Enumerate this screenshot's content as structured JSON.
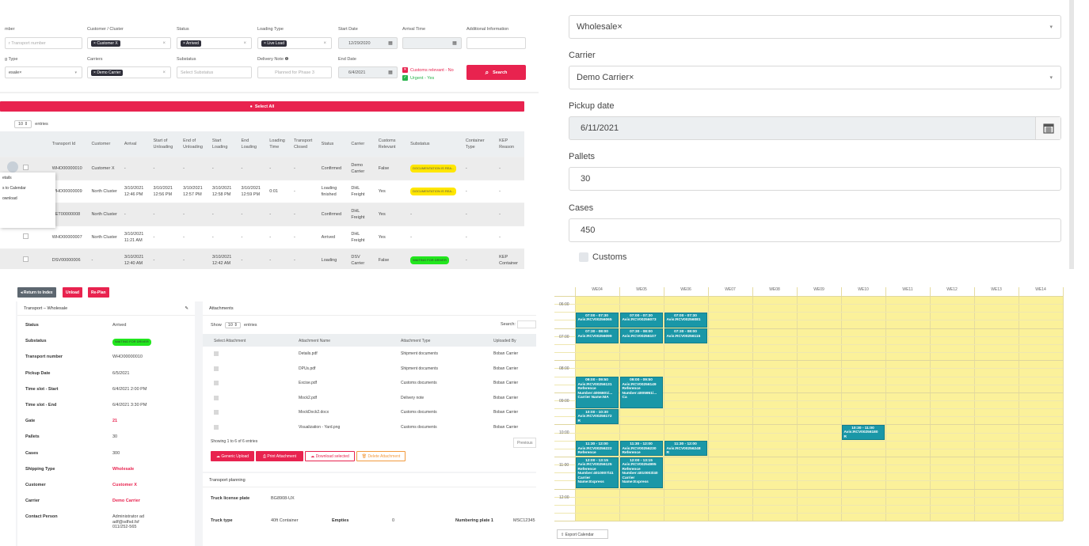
{
  "filters": {
    "row1": [
      {
        "label": "mber",
        "placeholder": "r Transport number"
      },
      {
        "label": "Customer / Cluster",
        "tag": "Customer X"
      },
      {
        "label": "Status",
        "tag": "Arrived"
      },
      {
        "label": "Loading Type",
        "tag": "Live Load"
      },
      {
        "label": "Start Date",
        "value": "12/29/2020"
      },
      {
        "label": "Arrival Time",
        "value": ""
      },
      {
        "label": "Additional Information",
        "value": ""
      }
    ],
    "row2": [
      {
        "label": "g Type",
        "value": "esale×"
      },
      {
        "label": "Carriers",
        "tag": "Demo Carrier"
      },
      {
        "label": "Substatus",
        "placeholder": "Select Substatus"
      },
      {
        "label": "Delivery Note",
        "placeholder": "Planned for Phase 3"
      },
      {
        "label": "End Date",
        "value": "6/4/2021"
      }
    ],
    "customs_relevant": "Customs relevant - No",
    "urgent": "Urgent - Yes",
    "search_label": "Search",
    "clear_symbol": "×",
    "calendar_icon": "calendar-icon",
    "colors": {
      "accent": "#e8234f",
      "tag": "#2f2f3a",
      "green": "#28b34b"
    }
  },
  "select_all_label": "Select All",
  "entries": {
    "count": "10",
    "label": "entries"
  },
  "table": {
    "columns": [
      "Transport Id",
      "Customer",
      "Arrival",
      "Start of Unloading",
      "End of Unloading",
      "Start Loading",
      "End Loading",
      "Loading Time",
      "Transport Closed",
      "Status",
      "Carrier",
      "Customs Relevant",
      "Substatus",
      "Container Type",
      "KEP Reason"
    ],
    "rows": [
      [
        "WHO00000010",
        "Customer X",
        "-",
        "-",
        "-",
        "-",
        "-",
        "-",
        "-",
        "Confirmed",
        "Demo Carrier",
        "False",
        "DOCUMENTATION IS REA...",
        "-",
        "-"
      ],
      [
        "WHO00000009",
        "North Cluster",
        "3/10/2021 12:46 PM",
        "3/10/2021 12:56 PM",
        "3/10/2021 12:57 PM",
        "3/10/2021 12:58 PM",
        "3/10/2021 12:59 PM",
        "0:01",
        "-",
        "Loading finished",
        "DHL Freight",
        "Yes",
        "DOCUMENTATION IS REA...",
        "-",
        "-"
      ],
      [
        "RET00000008",
        "North Cluster",
        "-",
        "-",
        "-",
        "-",
        "-",
        "-",
        "-",
        "Confirmed",
        "DHL Freight",
        "Yes",
        "-",
        "-",
        "-"
      ],
      [
        "WHO00000007",
        "North Cluster",
        "3/10/2021 11:21 AM",
        "-",
        "-",
        "-",
        "-",
        "-",
        "-",
        "Arrived",
        "DHL Freight",
        "Yes",
        "-",
        "-",
        "-"
      ],
      [
        "DSV00000006",
        "-",
        "3/10/2021 12:40 AM",
        "-",
        "-",
        "3/10/2021 12:42 AM",
        "-",
        "-",
        "-",
        "Loading",
        "DSV Carrier",
        "False",
        "WAITING FOR DRIVER",
        "-",
        "KEP Container"
      ]
    ]
  },
  "context_menu": [
    "etails",
    "s to Calendar",
    "ownload"
  ],
  "form": {
    "shipping_type_value": "Wholesale×",
    "carrier_label": "Carrier",
    "carrier_value": "Demo Carrier×",
    "pickup_label": "Pickup date",
    "pickup_value": "6/11/2021",
    "pallets_label": "Pallets",
    "pallets_value": "30",
    "cases_label": "Cases",
    "cases_value": "450",
    "customs_label": "Customs"
  },
  "detail": {
    "buttons": {
      "back": "Return to Index",
      "unload": "Unload",
      "replan": "Re-Plan"
    },
    "card_title": "Transport – Wholesale",
    "fields": [
      {
        "k": "Status",
        "v": "Arrived"
      },
      {
        "k": "Substatus",
        "v": "WAITING FOR DRIVER"
      },
      {
        "k": "Transport number",
        "v": "WHO00000010"
      },
      {
        "k": "Pickup Date",
        "v": "6/5/2021"
      },
      {
        "k": "Time slot - Start",
        "v": "6/4/2021 2:00 PM"
      },
      {
        "k": "Time slot - End",
        "v": "6/4/2021 3:30 PM"
      },
      {
        "k": "Gate",
        "v": "21"
      },
      {
        "k": "Pallets",
        "v": "30"
      },
      {
        "k": "Cases",
        "v": "300"
      },
      {
        "k": "Shipping Type",
        "v": "Wholesale"
      },
      {
        "k": "Customer",
        "v": "Customer X"
      },
      {
        "k": "Carrier",
        "v": "Demo Carrier"
      },
      {
        "k": "Contact Person",
        "v": "Administrator ad\nadf@sdfsd.fsf\n011/252-565"
      }
    ],
    "attachments": {
      "title": "Attachments",
      "show": "Show",
      "count": "10",
      "entries": "entries",
      "search": "Search:",
      "columns": [
        "Select Attachment",
        "Attachment Name",
        "Attachment Type",
        "Uploaded By"
      ],
      "rows": [
        [
          "Details.pdf",
          "Shipment documents",
          "Boban Carrier"
        ],
        [
          "DPUs.pdf",
          "Shipment documents",
          "Boban Carrier"
        ],
        [
          "Excise.pdf",
          "Customs documents",
          "Boban Carrier"
        ],
        [
          "Mock2.pdf",
          "Delivery note",
          "Boban Carrier"
        ],
        [
          "MockDock2.docx",
          "Customs documents",
          "Boban Carrier"
        ],
        [
          "Visualization - Yard.png",
          "Customs documents",
          "Boban Carrier"
        ]
      ],
      "showing": "Showing 1 to 6 of 6 entries",
      "previous": "Previous",
      "btn_generic": "Generic Upload",
      "btn_print": "Print Attachment",
      "btn_download": "Download selected",
      "btn_delete": "Delete Attachment"
    },
    "planning": {
      "title": "Transport planning",
      "truck_plate_label": "Truck license plate",
      "truck_plate_value": "BG8908-UX",
      "truck_type_label": "Truck type",
      "truck_type_value": "40ft Container",
      "empties_label": "Empties",
      "empties_value": "0",
      "numbering_label": "Numbering plate 1",
      "numbering_value": "MSC12345"
    }
  },
  "calendar": {
    "weeks": [
      "WE04",
      "WE05",
      "WE06",
      "WE07",
      "WE08",
      "WE09",
      "WE10",
      "WE11",
      "WE12",
      "WE13",
      "WE14"
    ],
    "times": [
      "06:00",
      "07:00",
      "08:00",
      "09:00",
      "10:00",
      "11:00",
      "12:00"
    ],
    "events": [
      {
        "col": 0,
        "row": 2,
        "span": 2,
        "time": "07:00 - 07:30",
        "ref": "Avis:RCV00256065"
      },
      {
        "col": 1,
        "row": 2,
        "span": 2,
        "time": "07:00 - 07:30",
        "ref": "Avis:RCV00256073"
      },
      {
        "col": 2,
        "row": 2,
        "span": 2,
        "time": "07:00 - 07:30",
        "ref": "Avis:RCV00256081"
      },
      {
        "col": 0,
        "row": 4,
        "span": 2,
        "time": "07:30 - 08:00",
        "ref": "Avis:RCV00256099"
      },
      {
        "col": 1,
        "row": 4,
        "span": 2,
        "time": "07:30 - 08:00",
        "ref": "Avis:RCV00256107"
      },
      {
        "col": 2,
        "row": 4,
        "span": 2,
        "time": "07:30 - 08:00",
        "ref": "Avis:RCV00256115"
      },
      {
        "col": 0,
        "row": 10,
        "span": 4,
        "time": "09:00 - 09:50",
        "ref": "Avis:RCV00256131\nReference\nNumber:4006601/...\nCarrier Name:MA"
      },
      {
        "col": 1,
        "row": 10,
        "span": 4,
        "time": "09:00 - 09:50",
        "ref": "Avis:RCV00256149\nReference\nNumber:4005951/...\nCa"
      },
      {
        "col": 0,
        "row": 14,
        "span": 2,
        "time": "10:00 - 10:30",
        "ref": "Avis:RCV00256172\nR"
      },
      {
        "col": 6,
        "row": 16,
        "span": 2,
        "time": "10:30 - 11:00",
        "ref": "Avis:RCV00256180\nR"
      },
      {
        "col": 0,
        "row": 18,
        "span": 2,
        "time": "11:30 - 12:00",
        "ref": "Avis:RCV00256222\nReference"
      },
      {
        "col": 1,
        "row": 18,
        "span": 2,
        "time": "11:30 - 12:00",
        "ref": "Avis:RCV00256230\nReference"
      },
      {
        "col": 2,
        "row": 18,
        "span": 2,
        "time": "11:30 - 12:00",
        "ref": "Avis:RCV00256248\nR"
      },
      {
        "col": 0,
        "row": 20,
        "span": 4,
        "time": "12:00 - 13:15",
        "ref": "Avis:RCV00256125\nReference\nNumber:4010007/41\nCarrier\nName:Express"
      },
      {
        "col": 1,
        "row": 20,
        "span": 4,
        "time": "12:00 - 13:15",
        "ref": "Avis:RCV00254995\nReference\nNumber:4010003/40\nCarrier\nName:Express"
      }
    ],
    "export_label": "Export Calendar",
    "colors": {
      "cell": "#fbf19a",
      "event": "#1a97a7"
    }
  }
}
